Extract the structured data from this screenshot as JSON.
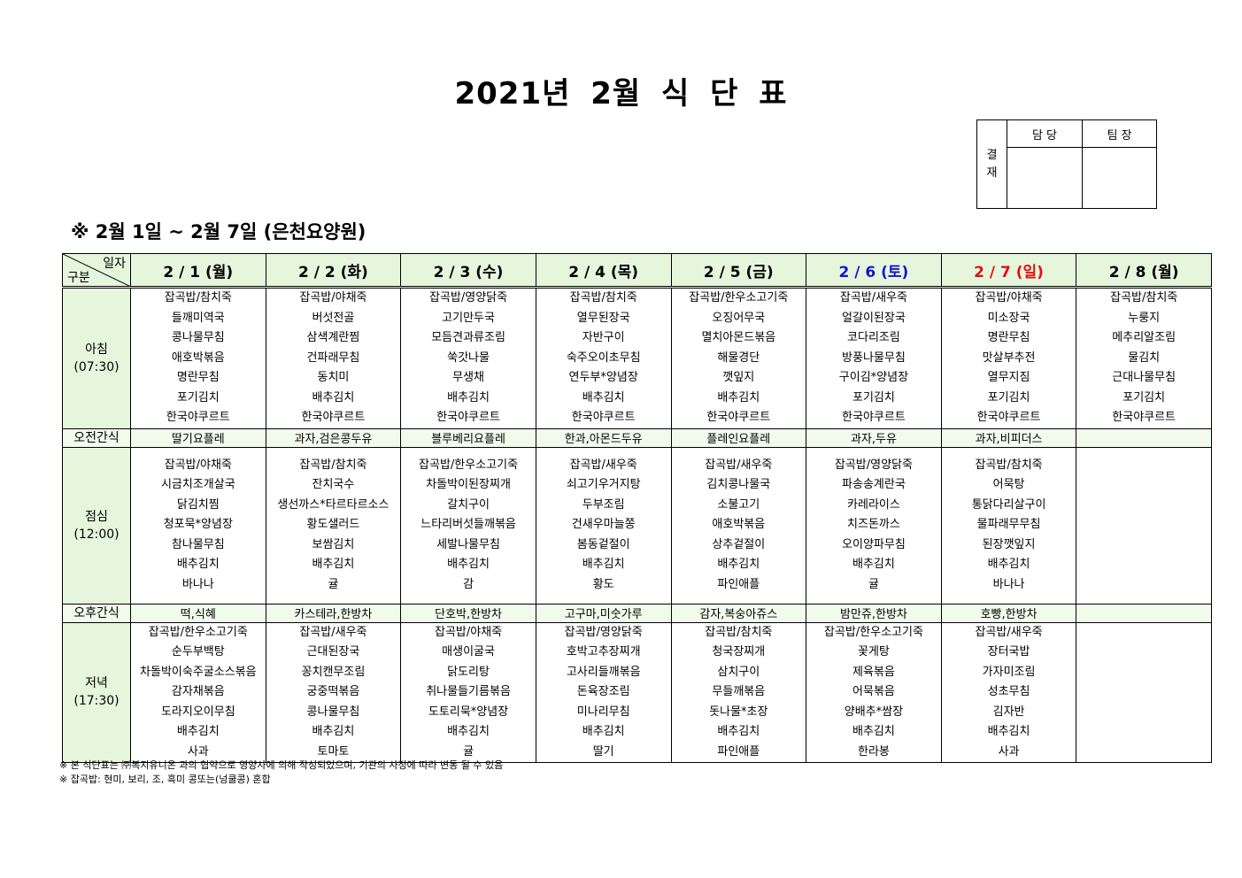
{
  "title": "2021년 2월 식 단 표",
  "approval": {
    "side_label": "결\n재",
    "columns": [
      "담 당",
      "팀 장"
    ]
  },
  "subtitle": "※ 2월 1일 ~ 2월 7일 (은천요양원)",
  "table": {
    "corner_top": "일자",
    "corner_bottom": "구분",
    "days": [
      {
        "label": "2 / 1 (월)",
        "color": "#000000"
      },
      {
        "label": "2 / 2 (화)",
        "color": "#000000"
      },
      {
        "label": "2 / 3 (수)",
        "color": "#000000"
      },
      {
        "label": "2 / 4 (목)",
        "color": "#000000"
      },
      {
        "label": "2 / 5 (금)",
        "color": "#000000"
      },
      {
        "label": "2 / 6 (토)",
        "color": "#1515d0"
      },
      {
        "label": "2 / 7 (일)",
        "color": "#e01010"
      },
      {
        "label": "2 / 8 (월)",
        "color": "#000000"
      }
    ],
    "rows": [
      {
        "label": "아침\n(07:30)",
        "kind": "meal",
        "cells": [
          [
            "잡곡밥/참치죽",
            "들깨미역국",
            "콩나물무침",
            "애호박볶음",
            "명란무침",
            "포기김치",
            "한국야쿠르트"
          ],
          [
            "잡곡밥/야채죽",
            "버섯전골",
            "삼색계란찜",
            "건파래무침",
            "동치미",
            "배추김치",
            "한국야쿠르트"
          ],
          [
            "잡곡밥/영양닭죽",
            "고기만두국",
            "모듬견과류조림",
            "쑥갓나물",
            "무생채",
            "배추김치",
            "한국야쿠르트"
          ],
          [
            "잡곡밥/참치죽",
            "열무된장국",
            "자반구이",
            "숙주오이초무침",
            "연두부*양념장",
            "배추김치",
            "한국야쿠르트"
          ],
          [
            "잡곡밥/한우소고기죽",
            "오징어무국",
            "멸치아몬드볶음",
            "해물경단",
            "깻잎지",
            "배추김치",
            "한국야쿠르트"
          ],
          [
            "잡곡밥/새우죽",
            "얼갈이된장국",
            "코다리조림",
            "방풍나물무침",
            "구이김*양념장",
            "포기김치",
            "한국야쿠르트"
          ],
          [
            "잡곡밥/야채죽",
            "미소장국",
            "명란무침",
            "맛살부추전",
            "열무지짐",
            "포기김치",
            "한국야쿠르트"
          ],
          [
            "잡곡밥/참치죽",
            "누룽지",
            "메추리알조림",
            "물김치",
            "근대나물무침",
            "포기김치",
            "한국야쿠르트"
          ]
        ]
      },
      {
        "label": "오전간식",
        "kind": "snack",
        "cells": [
          "딸기요플레",
          "과자,검은콩두유",
          "블루베리요플레",
          "한과,아몬드두유",
          "플레인요플레",
          "과자,두유",
          "과자,비피더스",
          ""
        ]
      },
      {
        "label": "점심\n(12:00)",
        "kind": "meal",
        "cells": [
          [
            "잡곡밥/야채죽",
            "시금치조개살국",
            "닭김치찜",
            "청포묵*양념장",
            "참나물무침",
            "배추김치",
            "바나나"
          ],
          [
            "잡곡밥/참치죽",
            "잔치국수",
            "생선까스*타르타르소스",
            "황도샐러드",
            "보쌈김치",
            "배추김치",
            "귤"
          ],
          [
            "잡곡밥/한우소고기죽",
            "차돌박이된장찌개",
            "갈치구이",
            "느타리버섯들깨볶음",
            "세발나물무침",
            "배추김치",
            "감"
          ],
          [
            "잡곡밥/새우죽",
            "쇠고기우거지탕",
            "두부조림",
            "건새우마늘쫑",
            "봄동겉절이",
            "배추김치",
            "황도"
          ],
          [
            "잡곡밥/새우죽",
            "김치콩나물국",
            "소불고기",
            "애호박볶음",
            "상추겉절이",
            "배추김치",
            "파인애플"
          ],
          [
            "잡곡밥/영양닭죽",
            "파송송계란국",
            "카레라이스",
            "치즈돈까스",
            "오이양파무침",
            "배추김치",
            "귤"
          ],
          [
            "잡곡밥/참치죽",
            "어묵탕",
            "통닭다리살구이",
            "물파래무무침",
            "된장깻잎지",
            "배추김치",
            "바나나"
          ],
          []
        ]
      },
      {
        "label": "오후간식",
        "kind": "snack",
        "cells": [
          "떡,식혜",
          "카스테라,한방차",
          "단호박,한방차",
          "고구마,미숫가루",
          "감자,복숭아쥬스",
          "밤만쥬,한방차",
          "호빵,한방차",
          ""
        ]
      },
      {
        "label": "저녁\n(17:30)",
        "kind": "meal",
        "cells": [
          [
            "잡곡밥/한우소고기죽",
            "순두부백탕",
            "차돌박이숙주굴소스볶음",
            "감자채볶음",
            "도라지오이무침",
            "배추김치",
            "사과"
          ],
          [
            "잡곡밥/새우죽",
            "근대된장국",
            "꽁치캔무조림",
            "궁중떡볶음",
            "콩나물무침",
            "배추김치",
            "토마토"
          ],
          [
            "잡곡밥/야채죽",
            "매생이굴국",
            "닭도리탕",
            "취나물들기름볶음",
            "도토리묵*양념장",
            "배추김치",
            "귤"
          ],
          [
            "잡곡밥/영양닭죽",
            "호박고추장찌개",
            "고사리들깨볶음",
            "돈육장조림",
            "미나리무침",
            "배추김치",
            "딸기"
          ],
          [
            "잡곡밥/참치죽",
            "청국장찌개",
            "삼치구이",
            "무들깨볶음",
            "돗나물*초장",
            "배추김치",
            "파인애플"
          ],
          [
            "잡곡밥/한우소고기죽",
            "꽃게탕",
            "제육볶음",
            "어묵볶음",
            "양배추*쌈장",
            "배추김치",
            "한라봉"
          ],
          [
            "잡곡밥/새우죽",
            "장터국밥",
            "가자미조림",
            "성초무침",
            "김자반",
            "배추김치",
            "사과"
          ],
          []
        ]
      }
    ]
  },
  "notes": [
    "※ 본 식단표는 ㈜복지유니온 과의 협약으로 영양사에 의해 작성되었으며, 기관의 사정에 따라 변동 될 수 있음",
    "※ 잡곡밥: 현미, 보리, 조, 흑미 콩또는(넝쿨콩) 혼합"
  ]
}
